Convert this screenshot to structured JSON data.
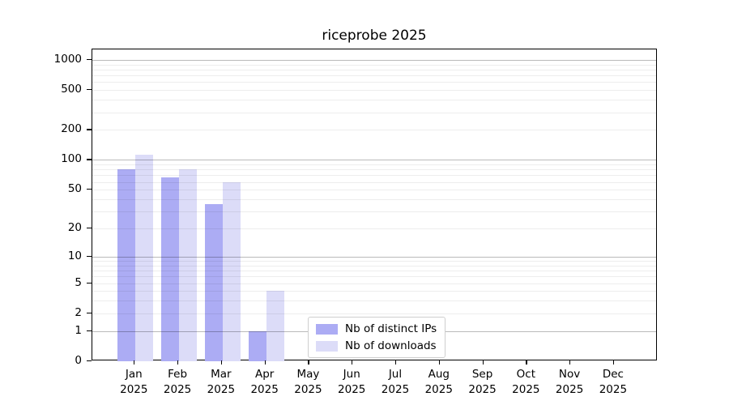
{
  "title": "riceprobe 2025",
  "chart_data": {
    "type": "bar",
    "title": "riceprobe 2025",
    "yscale": "log1p",
    "grid": "horizontal",
    "ylim": [
      0,
      1270
    ],
    "y_ticks": [
      0,
      1,
      2,
      5,
      10,
      20,
      50,
      100,
      200,
      500,
      1000
    ],
    "y_major_gridlines": [
      1,
      10,
      100,
      1000
    ],
    "categories": [
      "Jan",
      "Feb",
      "Mar",
      "Apr",
      "May",
      "Jun",
      "Jul",
      "Aug",
      "Sep",
      "Oct",
      "Nov",
      "Dec"
    ],
    "category_sublabel": "2025",
    "series": [
      {
        "name": "Nb of distinct IPs",
        "color": "#acacf4",
        "values": [
          80,
          67,
          36,
          1,
          0,
          0,
          0,
          0,
          0,
          0,
          0,
          0
        ]
      },
      {
        "name": "Nb of downloads",
        "color": "#dcdcf8",
        "values": [
          112,
          80,
          60,
          4,
          0,
          0,
          0,
          0,
          0,
          0,
          0,
          0
        ]
      }
    ],
    "legend_position": "lower center"
  }
}
